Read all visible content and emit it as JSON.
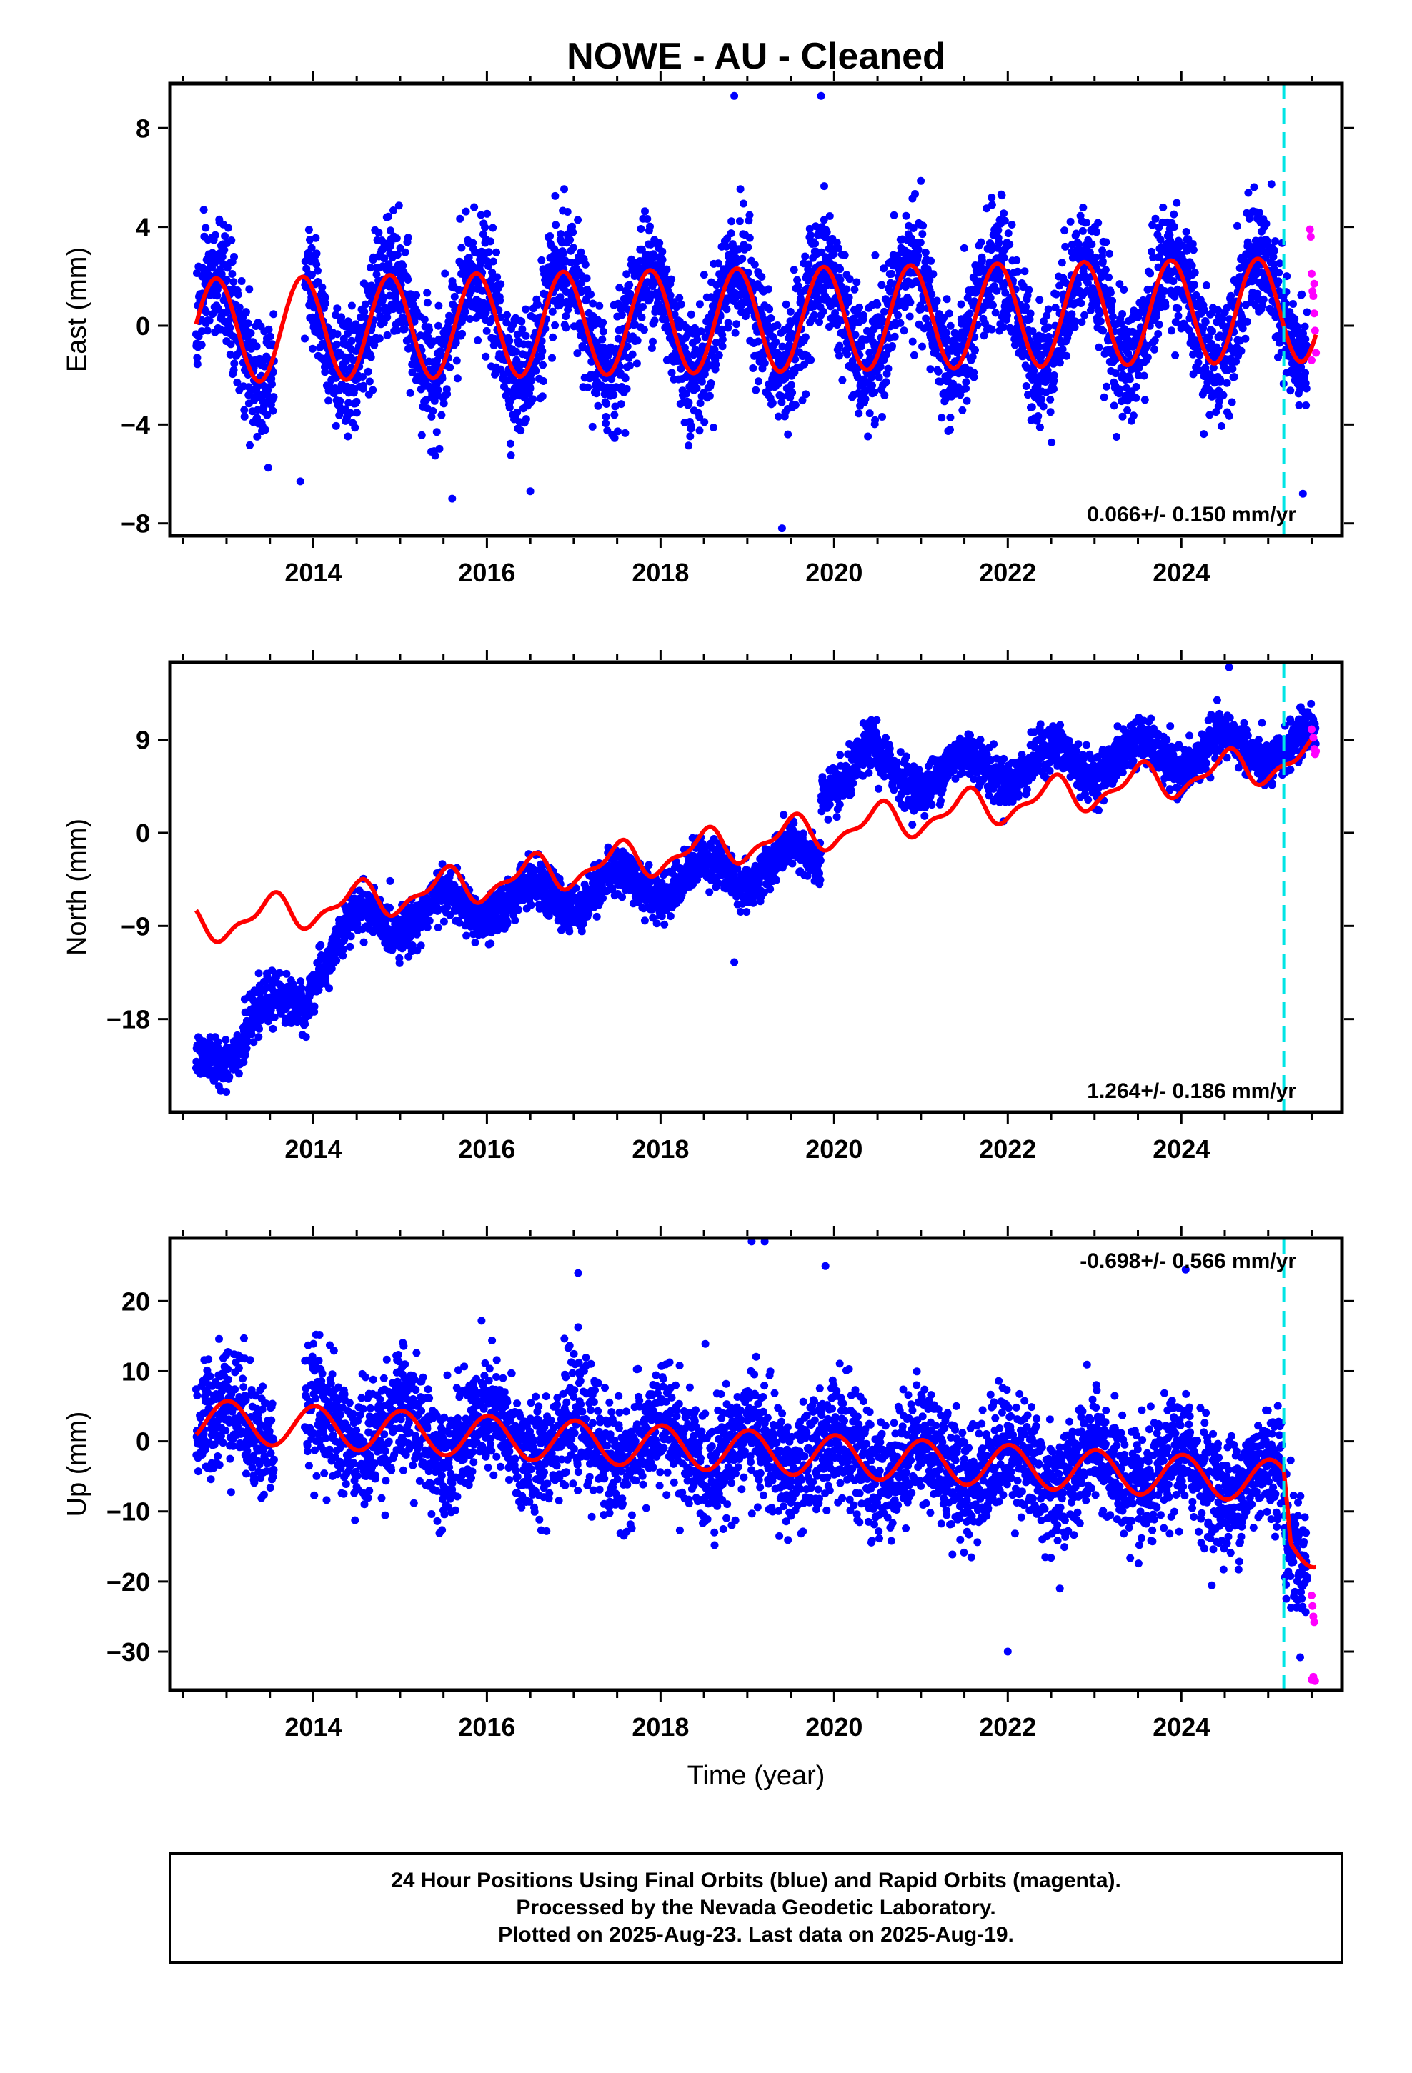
{
  "title": "NOWE  - AU - Cleaned",
  "colors": {
    "final_orbits": "#0000ff",
    "rapid_orbits": "#ff00ff",
    "model": "#ff0000",
    "marker": "#00e5e5",
    "frame": "#000000"
  },
  "footer": {
    "line1": "24 Hour Positions Using Final Orbits (blue) and Rapid Orbits (magenta).",
    "line2": "Processed by the Nevada Geodetic Laboratory.",
    "line3": "Plotted on 2025-Aug-23. Last data on 2025-Aug-19."
  },
  "chart_data": [
    {
      "type": "scatter",
      "ylabel": "East (mm)",
      "xlabel": "",
      "rate_text": "0.066+/- 0.150 mm/yr",
      "rate_position": "bottom-right",
      "xlim": [
        2012.35,
        2025.85
      ],
      "ylim": [
        -8.5,
        9.8
      ],
      "x_ticks": [
        2014,
        2016,
        2018,
        2020,
        2022,
        2024
      ],
      "y_ticks": [
        -8,
        -4,
        0,
        4,
        8
      ],
      "y_tick_labels": [
        "−8",
        "−4",
        "0",
        "4",
        "8"
      ],
      "marker_line_x": 2025.18,
      "series": [
        {
          "role": "final",
          "x_range": [
            2012.65,
            2025.45
          ],
          "trend_start": -0.2,
          "rate": 0.066,
          "annual_amp": 2.1,
          "annual_phase_peak": 0.88,
          "noise": 1.2,
          "outliers": [
            [
              2018.85,
              9.3
            ],
            [
              2019.85,
              9.3
            ],
            [
              2019.4,
              -8.2
            ],
            [
              2015.6,
              -7.0
            ],
            [
              2016.5,
              -6.7
            ],
            [
              2013.85,
              -6.3
            ],
            [
              2025.4,
              -6.8
            ]
          ]
        },
        {
          "role": "rapid",
          "points": [
            [
              2025.48,
              3.9
            ],
            [
              2025.49,
              3.6
            ],
            [
              2025.5,
              2.1
            ],
            [
              2025.51,
              1.4
            ],
            [
              2025.52,
              1.2
            ],
            [
              2025.53,
              0.5
            ],
            [
              2025.54,
              -0.2
            ],
            [
              2025.55,
              -1.1
            ],
            [
              2025.5,
              -1.4
            ],
            [
              2025.53,
              1.7
            ]
          ]
        },
        {
          "role": "model",
          "x_range": [
            2012.65,
            2025.55
          ],
          "trend_start": -0.2,
          "rate": 0.066,
          "annual_amp": 2.1,
          "annual_phase_peak": 0.88
        }
      ]
    },
    {
      "type": "scatter",
      "ylabel": "North (mm)",
      "xlabel": "",
      "rate_text": "1.264+/- 0.186 mm/yr",
      "rate_position": "bottom-right",
      "xlim": [
        2012.35,
        2025.85
      ],
      "ylim": [
        -27.0,
        16.5
      ],
      "x_ticks": [
        2014,
        2016,
        2018,
        2020,
        2022,
        2024
      ],
      "y_ticks": [
        -18,
        -9,
        0,
        9
      ],
      "y_tick_labels": [
        "−18",
        "−9",
        "0",
        "9"
      ],
      "marker_line_x": 2025.18,
      "series": [
        {
          "role": "final",
          "segments": [
            {
              "x0": 2012.65,
              "x1": 2013.2,
              "y0": -22.0,
              "y1": -19.5
            },
            {
              "x0": 2013.2,
              "x1": 2013.95,
              "y0": -19.0,
              "y1": -15.5
            },
            {
              "x0": 2013.95,
              "x1": 2014.6,
              "y0": -13.5,
              "y1": -8.5
            },
            {
              "x0": 2014.6,
              "x1": 2019.85,
              "y0": -8.5,
              "y1": -2.5
            },
            {
              "x0": 2019.85,
              "x1": 2020.5,
              "y0": 5.0,
              "y1": 7.5
            },
            {
              "x0": 2020.5,
              "x1": 2025.55,
              "y0": 5.5,
              "y1": 8.5
            }
          ],
          "annual_amp": 1.6,
          "annual_phase_peak": 0.5,
          "noise": 1.1,
          "outliers": [
            [
              2018.85,
              -12.5
            ],
            [
              2024.55,
              16.0
            ]
          ]
        },
        {
          "role": "rapid",
          "points": [
            [
              2025.5,
              10.0
            ],
            [
              2025.52,
              9.2
            ],
            [
              2025.53,
              8.1
            ],
            [
              2025.54,
              7.6
            ],
            [
              2025.55,
              7.9
            ]
          ]
        },
        {
          "role": "model",
          "x_range": [
            2012.65,
            2025.55
          ],
          "trend_start": -9.0,
          "rate": 1.264,
          "annual_amp": 1.6,
          "annual_phase_peak": 0.5,
          "semiannual_amp": 0.7
        }
      ]
    },
    {
      "type": "scatter",
      "ylabel": "Up (mm)",
      "xlabel": "Time (year)",
      "rate_text": "-0.698+/- 0.566 mm/yr",
      "rate_position": "top-right",
      "xlim": [
        2012.35,
        2025.85
      ],
      "ylim": [
        -35.5,
        29.0
      ],
      "x_ticks": [
        2014,
        2016,
        2018,
        2020,
        2022,
        2024
      ],
      "y_ticks": [
        -30,
        -20,
        -10,
        0,
        10,
        20
      ],
      "y_tick_labels": [
        "−30",
        "−20",
        "−10",
        "0",
        "10",
        "20"
      ],
      "marker_line_x": 2025.18,
      "series": [
        {
          "role": "final",
          "x_range": [
            2012.65,
            2025.45
          ],
          "trend_start": 3.0,
          "rate": -0.698,
          "annual_amp": 3.0,
          "annual_phase_peak": 0.02,
          "noise": 4.2,
          "late_offset": {
            "from": 2025.18,
            "value": -9.0
          },
          "outliers": [
            [
              2019.05,
              28.5
            ],
            [
              2019.2,
              28.5
            ],
            [
              2019.9,
              25.0
            ],
            [
              2017.05,
              24.0
            ],
            [
              2024.05,
              24.5
            ],
            [
              2022.0,
              -30.0
            ],
            [
              2022.6,
              -21.0
            ]
          ]
        },
        {
          "role": "rapid",
          "points": [
            [
              2025.5,
              -22.0
            ],
            [
              2025.51,
              -23.5
            ],
            [
              2025.52,
              -25.0
            ],
            [
              2025.53,
              -25.8
            ],
            [
              2025.5,
              -34.0
            ],
            [
              2025.52,
              -33.6
            ],
            [
              2025.54,
              -34.2
            ]
          ]
        },
        {
          "role": "model",
          "x_range": [
            2012.65,
            2025.55
          ],
          "trend_start": 3.0,
          "rate": -0.698,
          "annual_amp": 3.0,
          "annual_phase_peak": 0.02,
          "late_offset": {
            "from": 2025.18,
            "value": -9.0
          }
        }
      ]
    }
  ]
}
